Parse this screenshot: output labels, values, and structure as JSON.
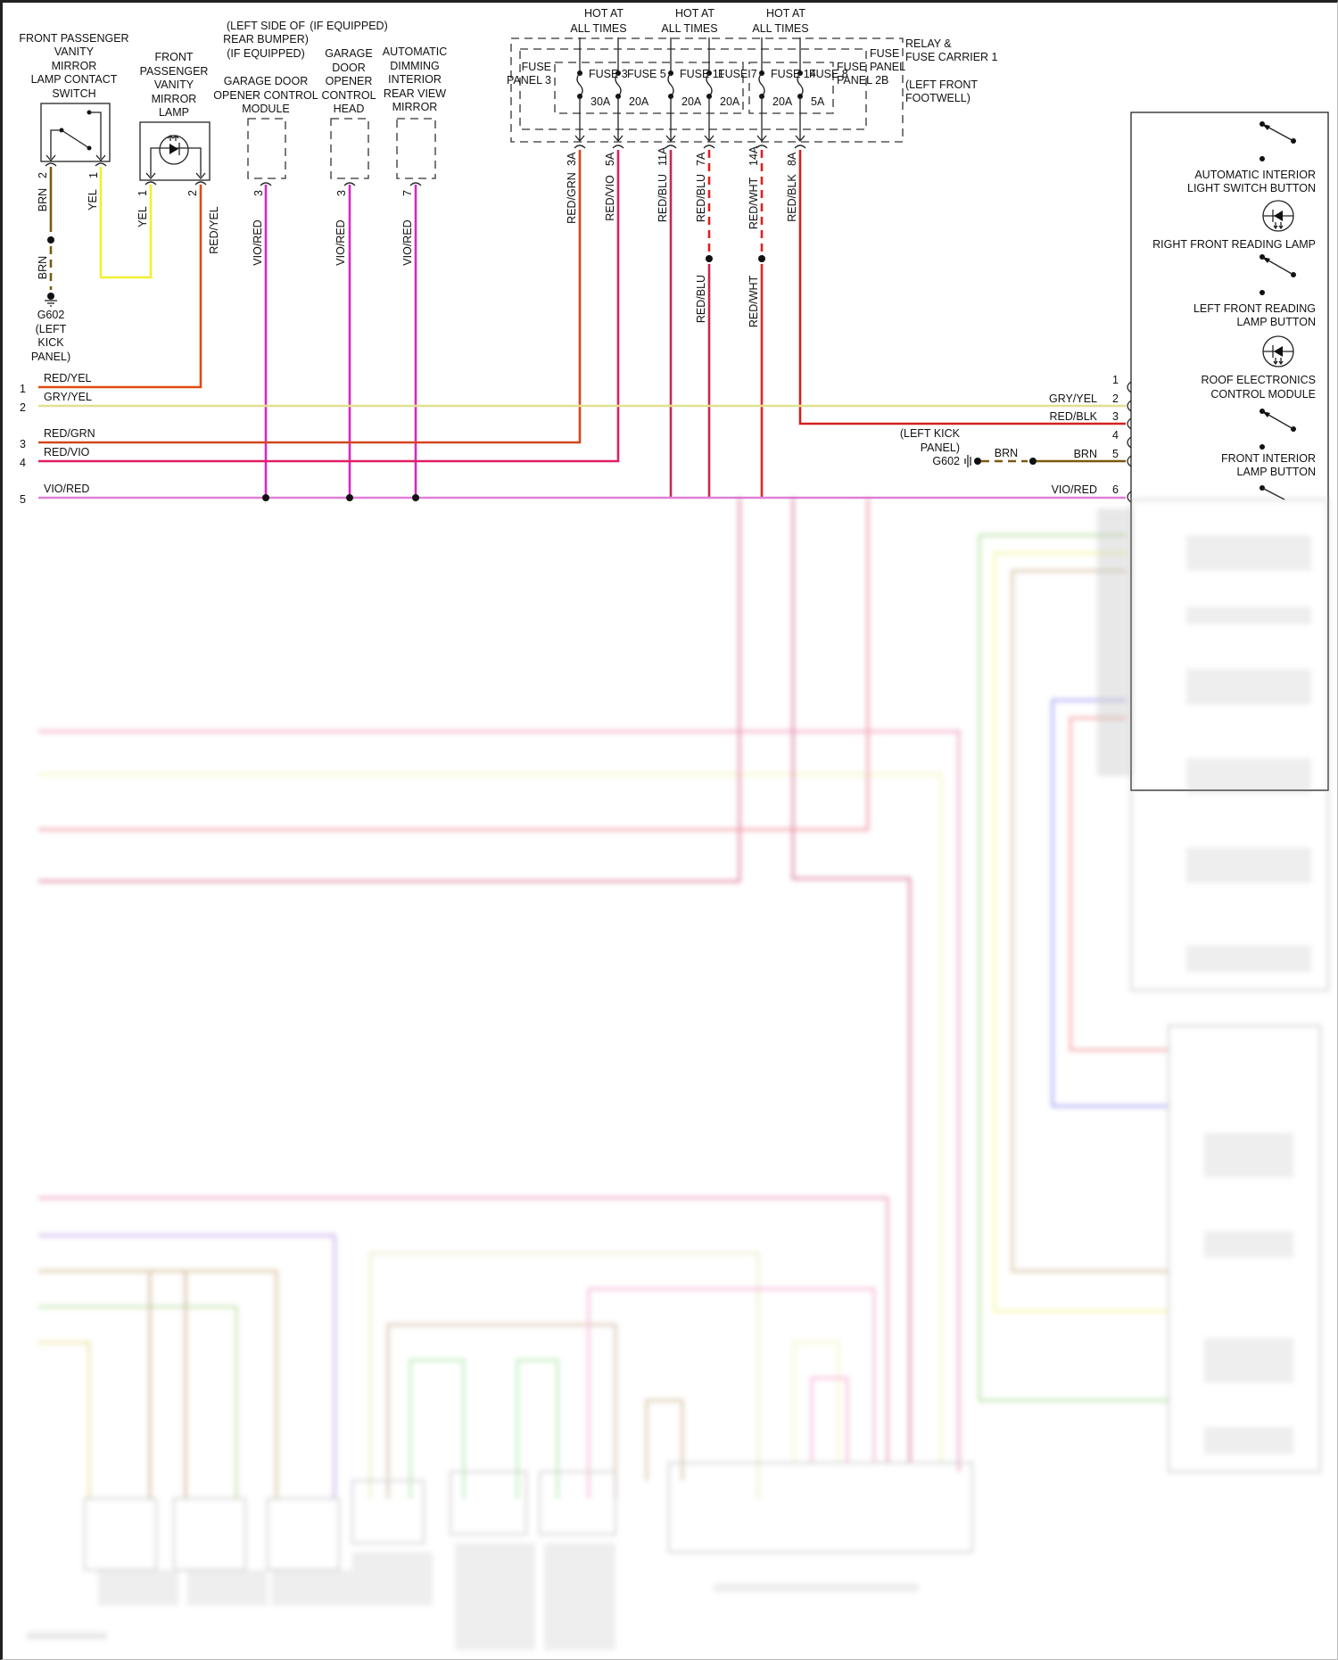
{
  "components": {
    "vanity_switch": [
      "FRONT PASSENGER",
      "VANITY",
      "MIRROR",
      "LAMP CONTACT",
      "SWITCH"
    ],
    "vanity_lamp": [
      "FRONT",
      "PASSENGER",
      "VANITY",
      "MIRROR",
      "LAMP"
    ],
    "garage_module_location": [
      "(LEFT SIDE OF",
      "REAR BUMPER)",
      "(IF EQUIPPED)"
    ],
    "garage_module": [
      "GARAGE DOOR",
      "OPENER CONTROL",
      "MODULE"
    ],
    "control_head_note": "(IF EQUIPPED)",
    "control_head": [
      "GARAGE",
      "DOOR",
      "OPENER",
      "CONTROL",
      "HEAD"
    ],
    "mirror": [
      "AUTOMATIC",
      "DIMMING",
      "INTERIOR",
      "REAR VIEW",
      "MIRROR"
    ],
    "ground_left": [
      "G602",
      "(LEFT",
      "KICK",
      "PANEL)"
    ],
    "relay_carrier": [
      "RELAY &",
      "FUSE CARRIER 1",
      "(LEFT FRONT",
      "FOOTWELL)"
    ],
    "fuse_panel_3": [
      "FUSE",
      "PANEL 3"
    ],
    "fuse_panel_2b": [
      "FUSE",
      "PANEL 2B"
    ],
    "fuse_panel": [
      "FUSE",
      "PANEL"
    ],
    "hot_at_all_times": [
      "HOT AT",
      "ALL TIMES"
    ],
    "roof_module": {
      "title": [
        "ROOF ELECTRONICS",
        "CONTROL MODULE"
      ],
      "auto_switch": [
        "AUTOMATIC INTERIOR",
        "LIGHT SWITCH BUTTON"
      ],
      "rf_lamp": "RIGHT FRONT READING LAMP",
      "lf_button": [
        "LEFT FRONT READING",
        "LAMP BUTTON"
      ],
      "front_button": [
        "FRONT INTERIOR",
        "LAMP BUTTON"
      ]
    },
    "ground_right": [
      "(LEFT KICK",
      "PANEL)",
      "G602"
    ]
  },
  "fuses": [
    {
      "name": "FUSE 3",
      "amps": "30A",
      "pin": "3A",
      "wire": "RED/GRN",
      "color": "#d2461e"
    },
    {
      "name": "FUSE 5",
      "amps": "20A",
      "pin": "5A",
      "wire": "RED/VIO",
      "color": "#e01e64"
    },
    {
      "name": "FUSE 11",
      "amps": "20A",
      "pin": "11A",
      "wire": "RED/BLU",
      "color": "#c8284e"
    },
    {
      "name": "FUSE 7",
      "amps": "20A",
      "pin": "7A",
      "wire": "RED/BLU",
      "color": "#c8284e"
    },
    {
      "name": "FUSE 14",
      "amps": "20A",
      "pin": "14A",
      "wire": "RED/WHT",
      "color": "#e02424"
    },
    {
      "name": "FUSE 8",
      "amps": "5A",
      "pin": "8A",
      "wire": "RED/BLK",
      "color": "#d42020"
    }
  ],
  "wires": {
    "vanity_switch_pin2": {
      "pin": "2",
      "label": "BRN",
      "color": "#7a5a10"
    },
    "vanity_switch_pin1": {
      "pin": "1",
      "label": "YEL",
      "color": "#f0f030"
    },
    "vanity_lamp_pin1": {
      "pin": "1",
      "label": "YEL"
    },
    "vanity_lamp_pin2": {
      "pin": "2",
      "label": "RED/YEL",
      "color": "#e04a10"
    },
    "ground_splice": "BRN",
    "splice_7a": "RED/BLU",
    "splice_14a": "RED/WHT",
    "garage_module_pin": {
      "pin": "3",
      "label": "VIO/RED",
      "color": "#d828c0"
    },
    "control_head_pin": {
      "pin": "3",
      "label": "VIO/RED"
    },
    "mirror_pin": {
      "pin": "7",
      "label": "VIO/RED"
    }
  },
  "left_connector": [
    {
      "pin": "1",
      "label": "RED/YEL"
    },
    {
      "pin": "2",
      "label": "GRY/YEL"
    },
    {
      "pin": "3",
      "label": "RED/GRN"
    },
    {
      "pin": "4",
      "label": "RED/VIO"
    },
    {
      "pin": "5",
      "label": "VIO/RED"
    }
  ],
  "roof_connector": [
    {
      "pin": "1",
      "label": ""
    },
    {
      "pin": "2",
      "label": "GRY/YEL"
    },
    {
      "pin": "3",
      "label": "RED/BLK"
    },
    {
      "pin": "4",
      "label": ""
    },
    {
      "pin": "5",
      "label": "BRN",
      "ground_label": "BRN"
    },
    {
      "pin": "6",
      "label": "VIO/RED"
    }
  ]
}
